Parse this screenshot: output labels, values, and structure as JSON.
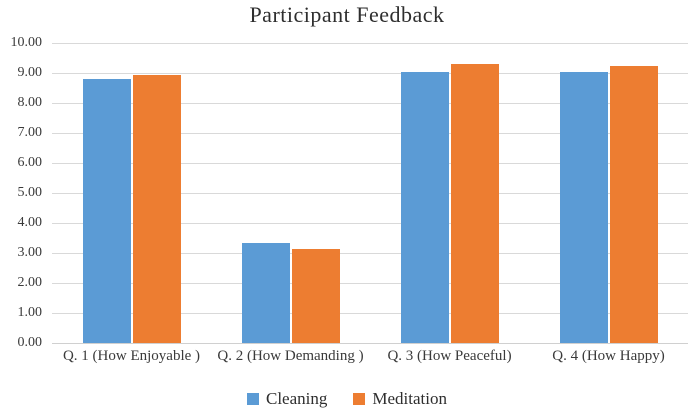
{
  "chart_data": {
    "type": "bar",
    "title": "Participant Feedback",
    "categories": [
      "Q. 1 (How Enjoyable )",
      "Q. 2 (How Demanding )",
      "Q. 3 (How Peaceful)",
      "Q. 4 (How Happy)"
    ],
    "series": [
      {
        "name": "Cleaning",
        "color": "#5B9BD5",
        "values": [
          8.8,
          3.35,
          9.05,
          9.05
        ]
      },
      {
        "name": "Meditation",
        "color": "#ED7D31",
        "values": [
          8.95,
          3.15,
          9.3,
          9.25
        ]
      }
    ],
    "xlabel": "",
    "ylabel": "",
    "ylim": [
      0,
      10
    ],
    "y_tick_step": 1,
    "y_tick_labels": [
      "10.00",
      "9.00",
      "8.00",
      "7.00",
      "6.00",
      "5.00",
      "4.00",
      "3.00",
      "2.00",
      "1.00",
      "0.00"
    ],
    "grid": true,
    "legend_position": "bottom",
    "colors": {
      "gridline": "#d9d9d9",
      "axis_line": "#d0d0d0",
      "text": "#3a3a3a",
      "title_text": "#2e2e2e",
      "background": "#ffffff"
    }
  }
}
